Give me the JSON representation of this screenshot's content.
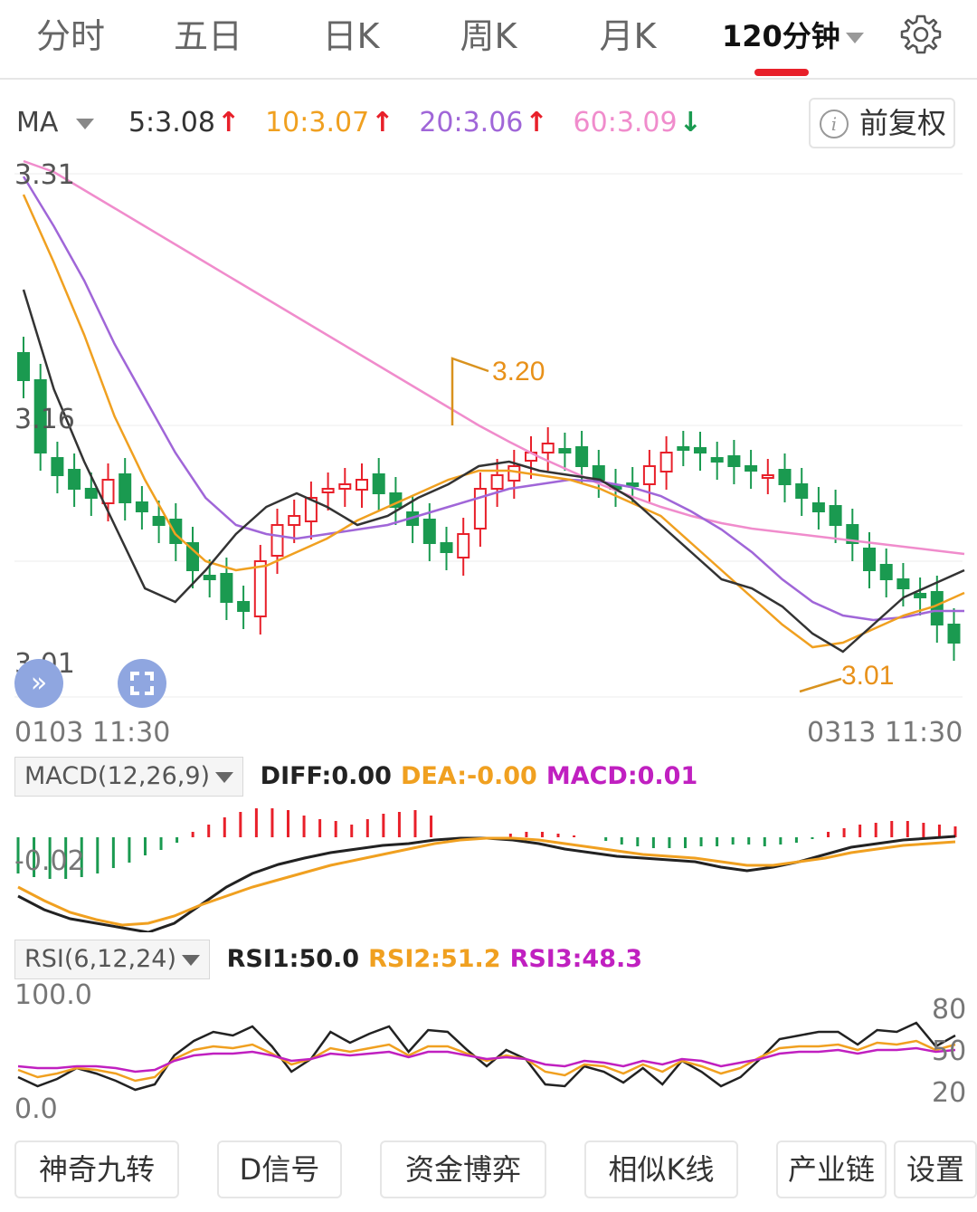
{
  "tabs": [
    {
      "label": "分时",
      "active": false
    },
    {
      "label": "五日",
      "active": false
    },
    {
      "label": "日K",
      "active": false
    },
    {
      "label": "周K",
      "active": false
    },
    {
      "label": "月K",
      "active": false
    },
    {
      "label": "120分钟",
      "active": true
    }
  ],
  "ma": {
    "label": "MA",
    "values": [
      {
        "text": "5:3.08",
        "arrow": "↑",
        "color": "#333333",
        "arrow_color": "#e8202a"
      },
      {
        "text": "10:3.07",
        "arrow": "↑",
        "color": "#f0a020",
        "arrow_color": "#e8202a"
      },
      {
        "text": "20:3.06",
        "arrow": "↑",
        "color": "#a066d8",
        "arrow_color": "#e8202a"
      },
      {
        "text": "60:3.09",
        "arrow": "↓",
        "color": "#f08ccc",
        "arrow_color": "#1a9a50"
      }
    ],
    "adjust_button": "前复权",
    "info_icon": "i"
  },
  "price_axis": {
    "top": "3.31",
    "mid": "3.16",
    "bottom": "3.01"
  },
  "annotations": {
    "high": "3.20",
    "low": "3.01"
  },
  "dates": {
    "start": "0103 11:30",
    "end": "0313 11:30"
  },
  "macd": {
    "label": "MACD(12,26,9)",
    "diff": "DIFF:0.00",
    "dea": "DEA:-0.00",
    "macd": "MACD:0.01",
    "axis_label": "-0.02"
  },
  "rsi": {
    "label": "RSI(6,12,24)",
    "rsi1": "RSI1:50.0",
    "rsi2": "RSI2:51.2",
    "rsi3": "RSI3:48.3",
    "axis_top": "100.0",
    "axis_bottom": "0.0",
    "right_labels": [
      "80",
      "50",
      "20"
    ]
  },
  "bottom_buttons": [
    "神奇九转",
    "D信号",
    "资金博弈",
    "相似K线",
    "产业链",
    "设置"
  ],
  "colors": {
    "up": "#e8202a",
    "down": "#1a9a50",
    "ma5": "#333333",
    "ma10": "#f0a020",
    "ma20": "#a066d8",
    "ma60": "#f08ccc",
    "diff": "#222222",
    "dea": "#f0a020",
    "macd": "#c020c0",
    "accent": "#e8202a"
  }
}
